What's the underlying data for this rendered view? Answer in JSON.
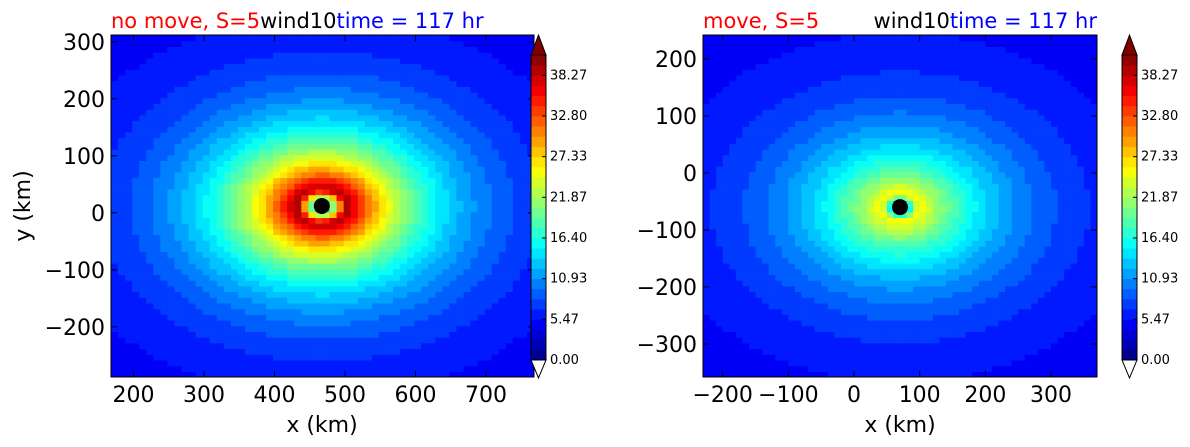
{
  "chart_data": [
    {
      "type": "heatmap",
      "variant": "filled-contour",
      "title_parts": [
        {
          "text": "no move, S=5",
          "color": "#ff0000"
        },
        {
          "text": "wind10",
          "color": "#000000"
        },
        {
          "text": "time = 117 hr",
          "color": "#0000ff"
        }
      ],
      "xlabel": "x (km)",
      "ylabel": "y (km)",
      "xlim": [
        168,
        768
      ],
      "ylim": [
        -288,
        312
      ],
      "xticks": [
        200,
        300,
        400,
        500,
        600,
        700
      ],
      "yticks": [
        -200,
        -100,
        0,
        100,
        200,
        300
      ],
      "storm_center": {
        "x": 467,
        "y": 12,
        "color": "#000000"
      },
      "wind_field": {
        "background": 4.0,
        "peak": 40.0,
        "radius_of_max_wind_km": 32,
        "decay_scale_km": 100,
        "anisotropy_x": 1.1,
        "anisotropy_y": 0.95
      },
      "colorbar": {
        "min": 0.0,
        "max": 41.0,
        "levels": 30,
        "tick_labels": [
          "0.00",
          "5.47",
          "10.93",
          "16.40",
          "21.87",
          "27.33",
          "32.80",
          "38.27"
        ],
        "extend": "both"
      }
    },
    {
      "type": "heatmap",
      "variant": "filled-contour",
      "title_parts": [
        {
          "text": "move, S=5",
          "color": "#ff0000"
        },
        {
          "text": "wind10",
          "color": "#000000"
        },
        {
          "text": "time = 117 hr",
          "color": "#0000ff"
        }
      ],
      "xlabel": "x (km)",
      "ylabel": "",
      "xlim": [
        -230,
        370
      ],
      "ylim": [
        -358,
        242
      ],
      "xticks": [
        -200,
        -100,
        0,
        100,
        200,
        300
      ],
      "yticks": [
        -300,
        -200,
        -100,
        0,
        100,
        200
      ],
      "storm_center": {
        "x": 70,
        "y": -60,
        "color": "#000000"
      },
      "wind_field": {
        "background": 4.0,
        "peak": 26.0,
        "radius_of_max_wind_km": 25,
        "decay_scale_km": 110,
        "anisotropy_x": 1.15,
        "anisotropy_y": 0.95
      },
      "colorbar": {
        "min": 0.0,
        "max": 41.0,
        "levels": 30,
        "tick_labels": [
          "0.00",
          "5.47",
          "10.93",
          "16.40",
          "21.87",
          "27.33",
          "32.80",
          "38.27"
        ],
        "extend": "both"
      }
    }
  ]
}
